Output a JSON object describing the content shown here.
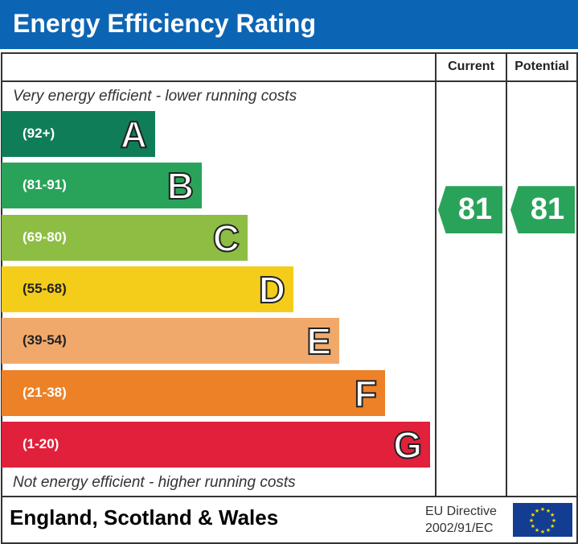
{
  "title": "Energy Efficiency Rating",
  "columns": {
    "current": "Current",
    "potential": "Potential"
  },
  "top_note": "Very energy efficient - lower running costs",
  "bottom_note": "Not energy efficient - higher running costs",
  "region": "England, Scotland & Wales",
  "directive": {
    "line1": "EU Directive",
    "line2": "2002/91/EC"
  },
  "colors": {
    "header": "#0c65b4",
    "A": "#0f7d58",
    "B": "#2aa35a",
    "C": "#8dbd43",
    "D": "#f4cd1b",
    "E": "#f1a96b",
    "F": "#ec8127",
    "G": "#e1203c"
  },
  "chart_data": {
    "type": "bar",
    "categories": [
      "A",
      "B",
      "C",
      "D",
      "E",
      "F",
      "G"
    ],
    "bands": [
      {
        "letter": "A",
        "range": "(92+)"
      },
      {
        "letter": "B",
        "range": "(81-91)"
      },
      {
        "letter": "C",
        "range": "(69-80)"
      },
      {
        "letter": "D",
        "range": "(55-68)"
      },
      {
        "letter": "E",
        "range": "(39-54)"
      },
      {
        "letter": "F",
        "range": "(21-38)"
      },
      {
        "letter": "G",
        "range": "(1-20)"
      }
    ],
    "current": 81,
    "potential": 81
  }
}
